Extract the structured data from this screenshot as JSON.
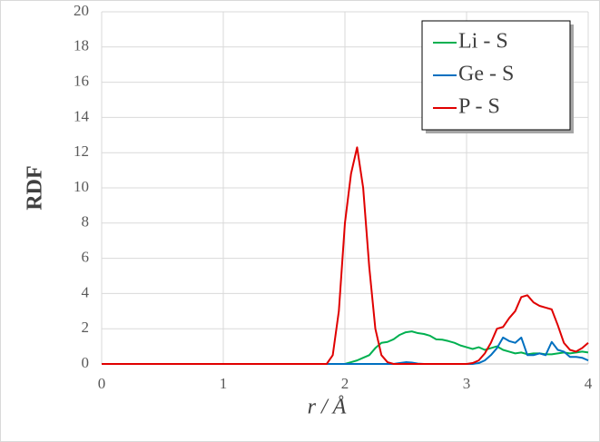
{
  "chart_data": {
    "type": "line",
    "xlabel": "r / Å",
    "ylabel": "RDF",
    "x": [
      0,
      0.5,
      1,
      1.5,
      1.8,
      1.85,
      1.9,
      1.95,
      2,
      2.05,
      2.1,
      2.15,
      2.2,
      2.25,
      2.3,
      2.35,
      2.4,
      2.45,
      2.5,
      2.55,
      2.6,
      2.65,
      2.7,
      2.75,
      2.8,
      2.85,
      2.9,
      2.95,
      3,
      3.05,
      3.1,
      3.15,
      3.2,
      3.25,
      3.3,
      3.35,
      3.4,
      3.45,
      3.5,
      3.55,
      3.6,
      3.65,
      3.7,
      3.75,
      3.8,
      3.85,
      3.9,
      3.95,
      4
    ],
    "series": [
      {
        "name": "Li - S",
        "color": "#00b050",
        "values": [
          0,
          0,
          0,
          0,
          0,
          0,
          0,
          0,
          0,
          0.1,
          0.2,
          0.35,
          0.5,
          0.9,
          1.2,
          1.25,
          1.4,
          1.65,
          1.8,
          1.85,
          1.75,
          1.7,
          1.6,
          1.4,
          1.38,
          1.3,
          1.2,
          1.05,
          0.95,
          0.85,
          0.95,
          0.8,
          0.9,
          1,
          0.8,
          0.7,
          0.6,
          0.65,
          0.55,
          0.6,
          0.6,
          0.55,
          0.55,
          0.6,
          0.65,
          0.6,
          0.65,
          0.7,
          0.65
        ]
      },
      {
        "name": "Ge - S",
        "color": "#0070c0",
        "values": [
          0,
          0,
          0,
          0,
          0,
          0,
          0,
          0,
          0,
          0,
          0,
          0,
          0,
          0,
          0,
          0,
          0,
          0.05,
          0.1,
          0.08,
          0.02,
          0,
          0,
          0,
          0,
          0,
          0,
          0,
          0,
          0,
          0.05,
          0.2,
          0.5,
          0.9,
          1.5,
          1.3,
          1.2,
          1.5,
          0.5,
          0.5,
          0.6,
          0.5,
          1.25,
          0.8,
          0.7,
          0.4,
          0.4,
          0.35,
          0.2
        ]
      },
      {
        "name": "P - S",
        "color": "#e00000",
        "values": [
          0,
          0,
          0,
          0,
          0,
          0,
          0.5,
          3,
          8,
          10.8,
          12.3,
          10,
          5.5,
          2,
          0.5,
          0.1,
          0,
          0,
          0,
          0,
          0,
          0,
          0,
          0,
          0,
          0,
          0,
          0,
          0,
          0.05,
          0.2,
          0.6,
          1.2,
          2,
          2.1,
          2.6,
          3,
          3.8,
          3.9,
          3.5,
          3.3,
          3.2,
          3.1,
          2.2,
          1.2,
          0.8,
          0.7,
          0.9,
          1.2
        ]
      }
    ],
    "xlim": [
      0,
      4
    ],
    "xticks": [
      0,
      1,
      2,
      3,
      4
    ],
    "ylim": [
      0,
      20
    ],
    "yticks": [
      0,
      2,
      4,
      6,
      8,
      10,
      12,
      14,
      16,
      18,
      20
    ],
    "grid": true,
    "legend": "upper right"
  }
}
